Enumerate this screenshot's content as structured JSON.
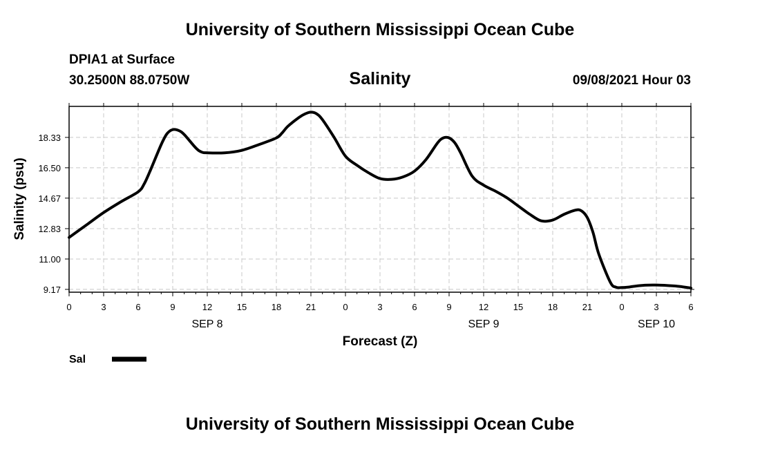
{
  "header": {
    "top_title": "University of Southern Mississippi Ocean Cube",
    "station": "DPIA1 at Surface",
    "coords": "30.2500N  88.0750W",
    "variable": "Salinity",
    "datetime": "09/08/2021 Hour 03"
  },
  "footer": {
    "bottom_title": "University of Southern Mississippi Ocean Cube"
  },
  "legend": {
    "label": "Sal",
    "color": "#000000"
  },
  "chart_data": {
    "type": "line",
    "title": "Salinity",
    "xlabel": "Forecast (Z)",
    "ylabel": "Salinity (psu)",
    "xlim": [
      0,
      54
    ],
    "ylim": [
      9.0,
      20.2
    ],
    "grid": true,
    "x_ticks": [
      0,
      3,
      6,
      9,
      12,
      15,
      18,
      21,
      24,
      27,
      30,
      33,
      36,
      39,
      42,
      45,
      48,
      51,
      54
    ],
    "x_tick_labels": [
      "0",
      "3",
      "6",
      "9",
      "12",
      "15",
      "18",
      "21",
      "0",
      "3",
      "6",
      "9",
      "12",
      "15",
      "18",
      "21",
      "0",
      "3",
      "6"
    ],
    "y_ticks": [
      9.17,
      11.0,
      12.83,
      14.67,
      16.5,
      18.33
    ],
    "y_tick_labels": [
      "9.17",
      "11.00",
      "12.83",
      "14.67",
      "16.50",
      "18.33"
    ],
    "day_labels": [
      {
        "label": "SEP 8",
        "x": 12
      },
      {
        "label": "SEP 9",
        "x": 36
      },
      {
        "label": "SEP 10",
        "x": 51
      }
    ],
    "series": [
      {
        "name": "Sal",
        "x": [
          0,
          1.5,
          3,
          4.5,
          6,
          6.5,
          7,
          8,
          8.5,
          9,
          9.5,
          10,
          11,
          11.5,
          12,
          13.5,
          15,
          16.5,
          18,
          18.5,
          19,
          20,
          20.5,
          21,
          21.5,
          22,
          23,
          24,
          25,
          26,
          27,
          28,
          29,
          30,
          31,
          32,
          32.5,
          33,
          33.5,
          34,
          35,
          36,
          37,
          38,
          39,
          40,
          41,
          42,
          43,
          44,
          44.5,
          45,
          45.5,
          46,
          47,
          47.5,
          48,
          48.5,
          49,
          50,
          51,
          52,
          53,
          54
        ],
        "values": [
          12.3,
          13.05,
          13.8,
          14.45,
          15.05,
          15.5,
          16.25,
          17.9,
          18.55,
          18.8,
          18.75,
          18.5,
          17.7,
          17.45,
          17.4,
          17.4,
          17.55,
          17.9,
          18.3,
          18.6,
          19.0,
          19.55,
          19.75,
          19.85,
          19.75,
          19.4,
          18.35,
          17.2,
          16.65,
          16.2,
          15.85,
          15.8,
          15.95,
          16.3,
          17.0,
          18.0,
          18.3,
          18.3,
          18.0,
          17.4,
          16.0,
          15.45,
          15.1,
          14.7,
          14.2,
          13.7,
          13.3,
          13.35,
          13.7,
          13.95,
          13.9,
          13.5,
          12.6,
          11.3,
          9.6,
          9.3,
          9.28,
          9.3,
          9.35,
          9.42,
          9.43,
          9.4,
          9.35,
          9.25
        ]
      }
    ]
  }
}
